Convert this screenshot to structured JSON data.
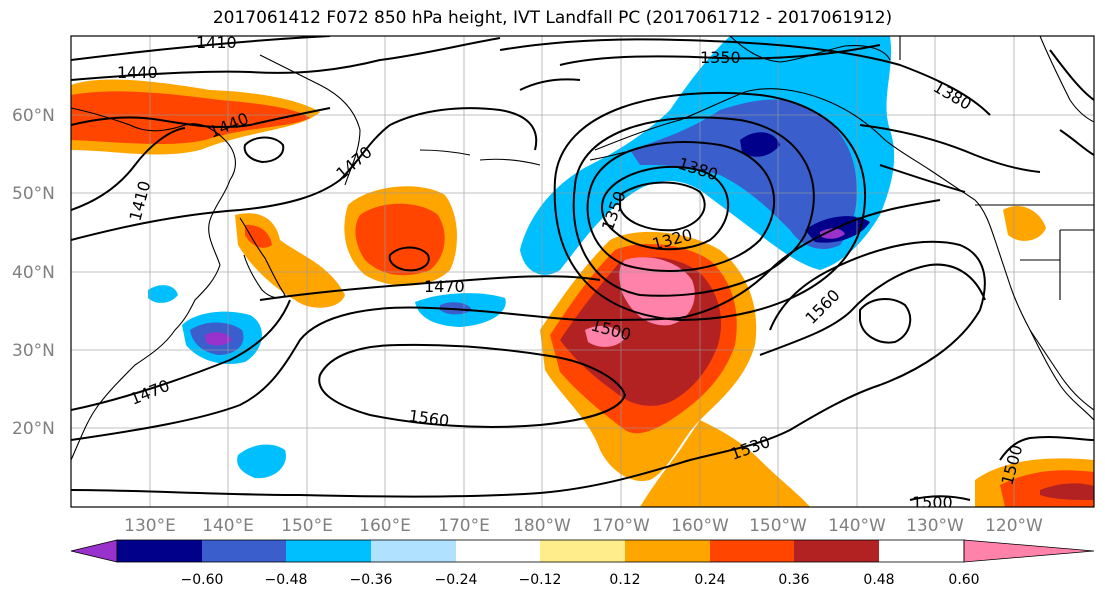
{
  "title": "2017061412 F072 850 hPa height, IVT Landfall PC (2017061712 - 2017061912)",
  "lat_labels": [
    "60°N",
    "50°N",
    "40°N",
    "30°N",
    "20°N"
  ],
  "lon_labels": [
    "130°E",
    "140°E",
    "150°E",
    "160°E",
    "170°E",
    "180°W",
    "170°W",
    "160°W",
    "150°W",
    "140°W",
    "130°W",
    "120°W"
  ],
  "contour_labels": [
    "1410",
    "1440",
    "1440",
    "1410",
    "1470",
    "1470",
    "1470",
    "1350",
    "1380",
    "1380",
    "1350",
    "1320",
    "1500",
    "1560",
    "1560",
    "1530",
    "1500",
    "1500"
  ],
  "colorbar": {
    "colors": [
      "#9932CC",
      "#00008B",
      "#3A5FCD",
      "#00BFFF",
      "#B0E2FF",
      "#FFFFFF",
      "#FFEC8B",
      "#FFA500",
      "#FF4500",
      "#B22222",
      "#FF82AB"
    ],
    "tick_labels": [
      "−0.60",
      "−0.48",
      "−0.36",
      "−0.24",
      "−0.12",
      "0.12",
      "0.24",
      "0.36",
      "0.48",
      "0.60"
    ]
  }
}
